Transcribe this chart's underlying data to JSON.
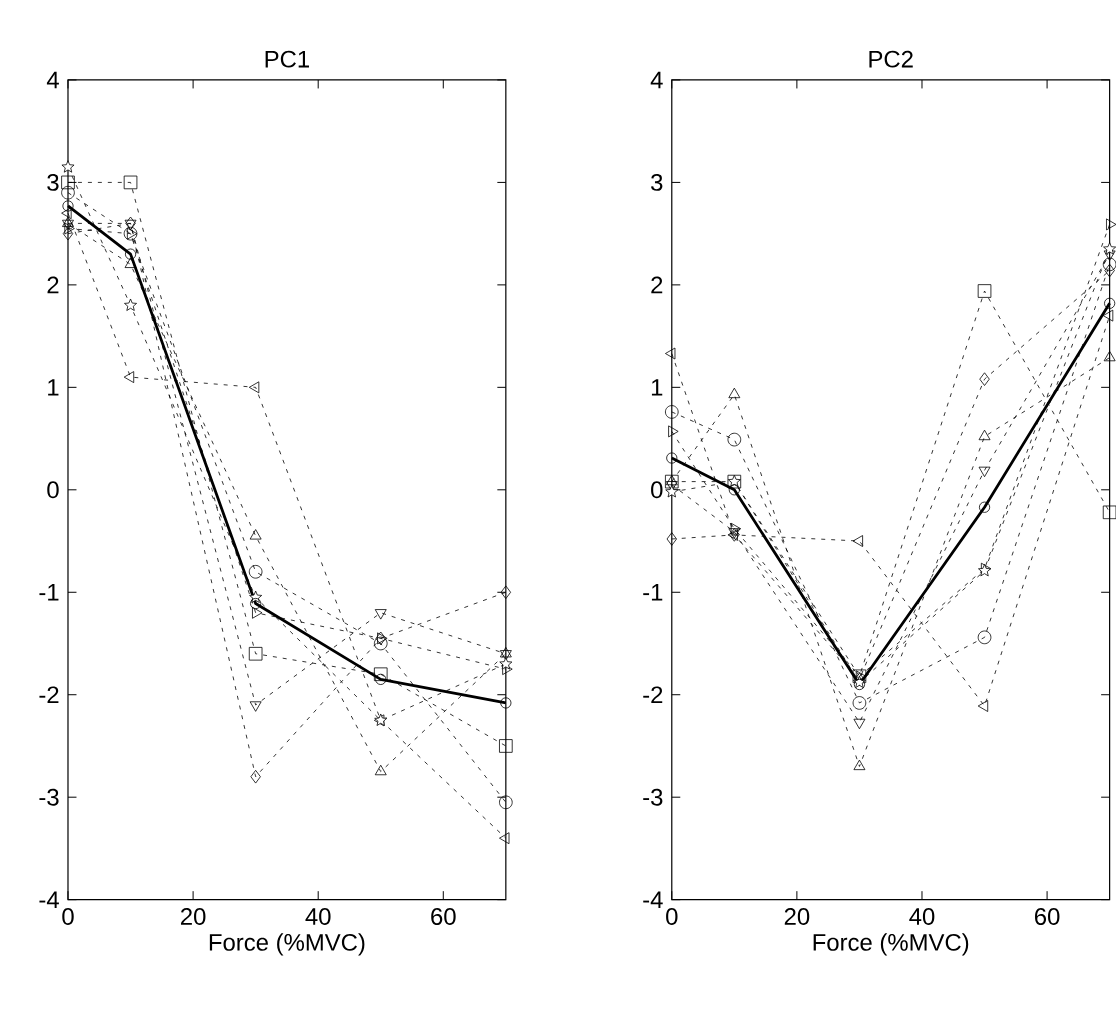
{
  "chart_data": [
    {
      "type": "line",
      "title": "PC1",
      "xlabel": "Force (%MVC)",
      "x": [
        0,
        10,
        30,
        50,
        70
      ],
      "xlim": [
        0,
        70
      ],
      "xticks": [
        0,
        20,
        40,
        60
      ],
      "ylim": [
        -4,
        4
      ],
      "yticks": [
        -4,
        -3,
        -2,
        -1,
        0,
        1,
        2,
        3,
        4
      ],
      "series": [
        {
          "color": "#000000",
          "marker": "circle",
          "line_style": "dotted",
          "values": [
            2.9,
            2.5,
            -0.8,
            -1.5,
            -3.05
          ]
        },
        {
          "color": "#000000",
          "marker": "square",
          "line_style": "dotted",
          "values": [
            3.0,
            3.0,
            -1.6,
            -1.8,
            -2.5
          ]
        },
        {
          "color": "#000000",
          "marker": "triangle",
          "line_style": "dotted",
          "values": [
            2.6,
            2.2,
            -0.45,
            -2.75,
            -1.6
          ]
        },
        {
          "color": "#000000",
          "marker": "triangle-down",
          "line_style": "dotted",
          "values": [
            2.6,
            2.6,
            -2.1,
            -1.2,
            -1.6
          ]
        },
        {
          "color": "#000000",
          "marker": "diamond",
          "line_style": "dotted",
          "values": [
            2.5,
            2.6,
            -2.8,
            -1.45,
            -1.0
          ]
        },
        {
          "color": "#000000",
          "marker": "triangle-left",
          "line_style": "dotted",
          "values": [
            2.7,
            1.1,
            1.0,
            -2.25,
            -3.4
          ]
        },
        {
          "color": "#000000",
          "marker": "triangle-right",
          "line_style": "dotted",
          "values": [
            2.55,
            2.5,
            -1.2,
            -1.45,
            -1.75
          ]
        },
        {
          "color": "#000000",
          "marker": "star",
          "line_style": "dotted",
          "values": [
            3.15,
            1.8,
            -1.05,
            -2.25,
            -1.7
          ]
        },
        {
          "color": "#000000",
          "marker": "circle",
          "line_style": "solid",
          "values": [
            2.77,
            2.3,
            -1.11,
            -1.85,
            -2.08
          ]
        }
      ]
    },
    {
      "type": "line",
      "title": "PC2",
      "xlabel": "Force (%MVC)",
      "x": [
        0,
        10,
        30,
        50,
        70
      ],
      "xlim": [
        0,
        70
      ],
      "xticks": [
        0,
        20,
        40,
        60
      ],
      "ylim": [
        -4,
        4
      ],
      "yticks": [
        -4,
        -3,
        -2,
        -1,
        0,
        1,
        2,
        3,
        4
      ],
      "series": [
        {
          "color": "#000000",
          "marker": "circle",
          "line_style": "dotted",
          "values": [
            0.76,
            0.49,
            -2.08,
            -1.44,
            2.2
          ]
        },
        {
          "color": "#000000",
          "marker": "square",
          "line_style": "dotted",
          "values": [
            0.08,
            0.08,
            -1.82,
            1.94,
            -0.22
          ]
        },
        {
          "color": "#000000",
          "marker": "triangle",
          "line_style": "dotted",
          "values": [
            0.08,
            0.93,
            -2.7,
            0.52,
            1.29
          ]
        },
        {
          "color": "#000000",
          "marker": "triangle-down",
          "line_style": "dotted",
          "values": [
            0.05,
            -0.41,
            -2.27,
            0.19,
            2.3
          ]
        },
        {
          "color": "#000000",
          "marker": "diamond",
          "line_style": "dotted",
          "values": [
            -0.48,
            -0.44,
            -1.85,
            1.08,
            2.14
          ]
        },
        {
          "color": "#000000",
          "marker": "triangle-left",
          "line_style": "dotted",
          "values": [
            1.33,
            -0.44,
            -0.5,
            -2.11,
            1.7
          ]
        },
        {
          "color": "#000000",
          "marker": "triangle-right",
          "line_style": "dotted",
          "values": [
            0.57,
            -0.38,
            -1.82,
            -0.77,
            2.59
          ]
        },
        {
          "color": "#000000",
          "marker": "star",
          "line_style": "dotted",
          "values": [
            -0.02,
            0.08,
            -1.88,
            -0.79,
            2.35
          ]
        },
        {
          "color": "#000000",
          "marker": "circle",
          "line_style": "solid",
          "values": [
            0.31,
            0.0,
            -1.9,
            -0.17,
            1.82
          ]
        }
      ]
    }
  ]
}
